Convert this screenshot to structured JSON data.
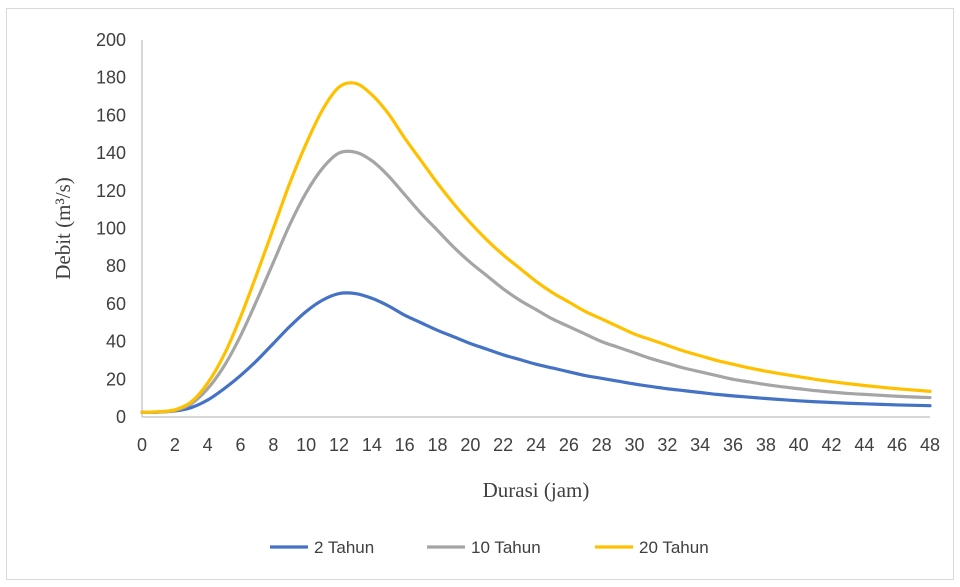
{
  "chart_data": {
    "type": "line",
    "title": "",
    "xlabel": "Durasi (jam)",
    "ylabel": "Debit (m³/s)",
    "xlim": [
      0,
      48
    ],
    "ylim": [
      0,
      200
    ],
    "x_ticks": [
      0,
      2,
      4,
      6,
      8,
      10,
      12,
      14,
      16,
      18,
      20,
      22,
      24,
      26,
      28,
      30,
      32,
      34,
      36,
      38,
      40,
      42,
      44,
      46,
      48
    ],
    "y_ticks": [
      0,
      20,
      40,
      60,
      80,
      100,
      120,
      140,
      160,
      180,
      200
    ],
    "grid": false,
    "legend_position": "bottom",
    "x": [
      0,
      1,
      2,
      3,
      4,
      5,
      6,
      7,
      8,
      9,
      10,
      11,
      12,
      13,
      14,
      15,
      16,
      17,
      18,
      19,
      20,
      21,
      22,
      23,
      24,
      25,
      26,
      27,
      28,
      29,
      30,
      31,
      32,
      33,
      34,
      35,
      36,
      37,
      38,
      39,
      40,
      41,
      42,
      43,
      44,
      45,
      46,
      47,
      48
    ],
    "series": [
      {
        "name": "2 Tahun",
        "color": "#4472c4",
        "values": [
          2.5,
          2.6,
          3.2,
          5,
          9,
          15,
          22,
          30,
          39,
          48,
          56,
          62,
          65.5,
          65.5,
          63,
          59,
          54,
          50,
          46,
          42.5,
          39,
          36,
          33,
          30.5,
          28,
          26,
          24,
          22,
          20.5,
          19,
          17.5,
          16.2,
          15,
          14,
          13,
          12,
          11.2,
          10.5,
          9.8,
          9.2,
          8.6,
          8.1,
          7.7,
          7.3,
          7,
          6.7,
          6.4,
          6.2,
          6
        ]
      },
      {
        "name": "10 Tahun",
        "color": "#a5a5a5",
        "values": [
          2.5,
          2.7,
          3.5,
          7,
          15,
          27,
          43,
          62,
          82,
          102,
          119,
          132,
          140,
          140.5,
          136,
          128,
          118,
          108,
          99,
          90,
          82,
          75,
          68,
          62,
          57,
          52,
          48,
          44,
          40,
          37,
          34,
          31,
          28.5,
          26,
          24,
          22,
          20,
          18.6,
          17.2,
          16,
          15,
          14,
          13.2,
          12.5,
          12,
          11.5,
          11,
          10.6,
          10.3
        ]
      },
      {
        "name": "20 Tahun",
        "color": "#ffc000",
        "values": [
          2.5,
          2.8,
          3.8,
          8,
          18,
          33,
          53,
          76,
          100,
          124,
          145,
          163,
          175,
          177,
          171,
          161,
          148,
          136,
          124,
          113,
          103,
          94,
          86,
          79,
          72,
          66,
          61,
          56,
          52,
          48,
          44,
          41,
          38,
          35,
          32.5,
          30,
          28,
          26,
          24.3,
          22.8,
          21.4,
          20,
          18.8,
          17.7,
          16.7,
          15.8,
          15,
          14.3,
          13.6
        ]
      }
    ]
  }
}
